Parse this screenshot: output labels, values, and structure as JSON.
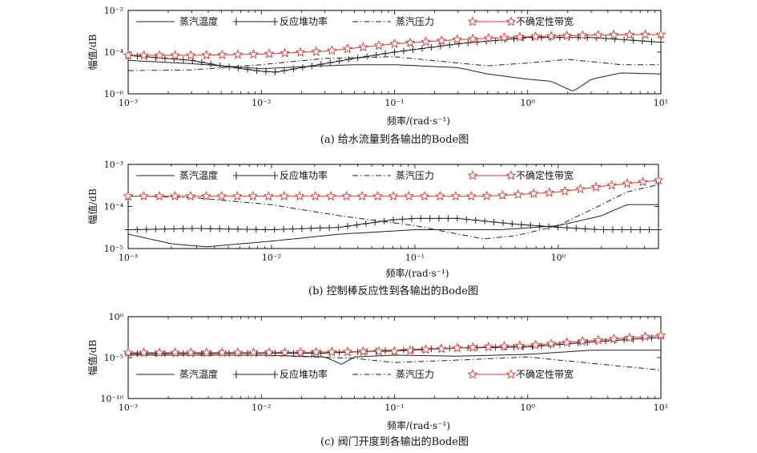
{
  "chart_data": [
    {
      "type": "line",
      "caption": "(a) 给水流量到各输出的Bode图",
      "xlabel": "频率/(rad·s⁻¹)",
      "ylabel": "幅值/dB",
      "xscale": "log",
      "yscale": "log",
      "xlim": [
        0.001,
        10
      ],
      "ylim": [
        1e-06,
        0.01
      ],
      "x_ticks": [
        "10⁻³",
        "10⁻²",
        "10⁻¹",
        "10⁰",
        "10¹"
      ],
      "y_ticks": [
        "10⁻⁶",
        "10⁻⁴",
        "10⁻²"
      ],
      "legend_position": "top",
      "series": [
        {
          "name": "蒸汽温度",
          "style": "solid",
          "x": [
            0.001,
            0.003,
            0.01,
            0.02,
            0.05,
            0.1,
            0.3,
            0.5,
            1,
            1.5,
            2.2,
            3,
            5,
            10
          ],
          "y": [
            4e-05,
            2.8e-05,
            1.6e-05,
            2e-05,
            2.5e-05,
            2.5e-05,
            1.8e-05,
            9e-06,
            5e-06,
            4e-06,
            1.3e-06,
            5e-06,
            1e-05,
            9e-06
          ]
        },
        {
          "name": "反应堆功率",
          "style": "solid-plus",
          "x": [
            0.001,
            0.003,
            0.005,
            0.01,
            0.013,
            0.02,
            0.05,
            0.1,
            0.3,
            1,
            3,
            10
          ],
          "y": [
            7e-05,
            4e-05,
            2.2e-05,
            1.2e-05,
            1.1e-05,
            1.8e-05,
            5e-05,
            0.0001,
            0.00025,
            0.0005,
            0.0005,
            0.0003
          ]
        },
        {
          "name": "蒸汽压力",
          "style": "dash-dot",
          "x": [
            0.001,
            0.003,
            0.01,
            0.03,
            0.1,
            0.3,
            0.5,
            1,
            2,
            5,
            10
          ],
          "y": [
            1.3e-05,
            1.4e-05,
            2.5e-05,
            5e-05,
            6e-05,
            3e-05,
            2.2e-05,
            3e-05,
            4.5e-05,
            2.5e-05,
            2.5e-05
          ]
        },
        {
          "name": "不确定性带宽",
          "style": "solid-star",
          "x": [
            0.001,
            0.003,
            0.01,
            0.03,
            0.1,
            0.3,
            1,
            3,
            10
          ],
          "y": [
            7e-05,
            7e-05,
            8e-05,
            0.00011,
            0.00025,
            0.0004,
            0.00055,
            0.00065,
            0.0007
          ]
        }
      ]
    },
    {
      "type": "line",
      "caption": "(b) 控制棒反应性到各输出的Bode图",
      "xlabel": "频率/(rad·s⁻¹)",
      "ylabel": "幅值/dB",
      "xscale": "log",
      "yscale": "log",
      "xlim": [
        0.001,
        5
      ],
      "ylim": [
        1e-05,
        0.001
      ],
      "x_ticks": [
        "10⁻³",
        "10⁻²",
        "10⁻¹",
        "10⁰"
      ],
      "y_ticks": [
        "10⁻⁵",
        "10⁻⁴",
        "10⁻³"
      ],
      "legend_position": "top",
      "series": [
        {
          "name": "蒸汽温度",
          "style": "solid",
          "x": [
            0.001,
            0.002,
            0.0035,
            0.01,
            0.03,
            0.1,
            0.2,
            0.4,
            1,
            2,
            3,
            5
          ],
          "y": [
            2.2e-05,
            1.3e-05,
            1.1e-05,
            1.5e-05,
            2.2e-05,
            2.8e-05,
            2.8e-05,
            2.8e-05,
            3.5e-05,
            6e-05,
            0.00011,
            0.00011
          ]
        },
        {
          "name": "反应堆功率",
          "style": "solid-plus",
          "x": [
            0.001,
            0.003,
            0.01,
            0.03,
            0.07,
            0.1,
            0.2,
            0.5,
            1,
            2,
            5
          ],
          "y": [
            2.8e-05,
            3e-05,
            2.8e-05,
            3.2e-05,
            4.8e-05,
            5.2e-05,
            5.2e-05,
            3.8e-05,
            3.2e-05,
            2.8e-05,
            2.8e-05
          ]
        },
        {
          "name": "蒸汽压力",
          "style": "dash-dot",
          "x": [
            0.001,
            0.003,
            0.01,
            0.03,
            0.1,
            0.2,
            0.3,
            0.5,
            1,
            2,
            3,
            5
          ],
          "y": [
            0.00018,
            0.00016,
            0.00011,
            6e-05,
            3.5e-05,
            2.2e-05,
            1.7e-05,
            2e-05,
            3.5e-05,
            0.00011,
            0.00022,
            0.00033
          ]
        },
        {
          "name": "不确定性带宽",
          "style": "solid-star",
          "x": [
            0.001,
            0.01,
            0.1,
            0.3,
            0.5,
            1,
            2,
            5
          ],
          "y": [
            0.000175,
            0.000175,
            0.000175,
            0.000175,
            0.00019,
            0.00022,
            0.0003,
            0.00042
          ]
        }
      ]
    },
    {
      "type": "line",
      "caption": "(c) 阀门开度到各输出的Bode图",
      "xlabel": "频率/(rad·s⁻¹)",
      "ylabel": "幅值/dB",
      "xscale": "log",
      "yscale": "log",
      "xlim": [
        0.001,
        10
      ],
      "ylim": [
        1e-10,
        1
      ],
      "x_ticks": [
        "10⁻³",
        "10⁻²",
        "10⁻¹",
        "10⁰",
        "10¹"
      ],
      "y_ticks": [
        "10⁻¹⁰",
        "10⁻⁵",
        "10⁰"
      ],
      "legend_position": "bottom",
      "series": [
        {
          "name": "蒸汽温度",
          "style": "solid",
          "x": [
            0.001,
            0.01,
            0.03,
            0.04,
            0.05,
            0.1,
            0.3,
            1,
            3,
            10
          ],
          "y": [
            2e-05,
            2e-05,
            1.2e-05,
            1.5e-06,
            1.2e-05,
            2e-05,
            1.5e-05,
            2.5e-05,
            8e-05,
            8e-05
          ]
        },
        {
          "name": "反应堆功率",
          "style": "solid-plus",
          "x": [
            0.001,
            0.01,
            0.03,
            0.1,
            0.3,
            1,
            3,
            10
          ],
          "y": [
            3e-05,
            3.5e-05,
            3.5e-05,
            8e-05,
            0.00015,
            0.0002,
            0.0008,
            0.003
          ]
        },
        {
          "name": "蒸汽压力",
          "style": "dash-dot",
          "x": [
            0.001,
            0.01,
            0.05,
            0.1,
            0.3,
            1,
            3,
            10
          ],
          "y": [
            2e-05,
            2e-05,
            8e-06,
            2.5e-06,
            5e-06,
            1.2e-05,
            2e-06,
            3e-07
          ]
        },
        {
          "name": "不确定性带宽",
          "style": "solid-star",
          "x": [
            0.001,
            0.01,
            0.1,
            0.3,
            1,
            3,
            10
          ],
          "y": [
            4e-05,
            4e-05,
            6e-05,
            0.00015,
            0.0003,
            0.0012,
            0.005
          ]
        }
      ]
    }
  ],
  "colors": {
    "axis": "#000000",
    "series_black": "#222222",
    "uncertainty": "#e03030",
    "star_fill": "#ffffff"
  }
}
